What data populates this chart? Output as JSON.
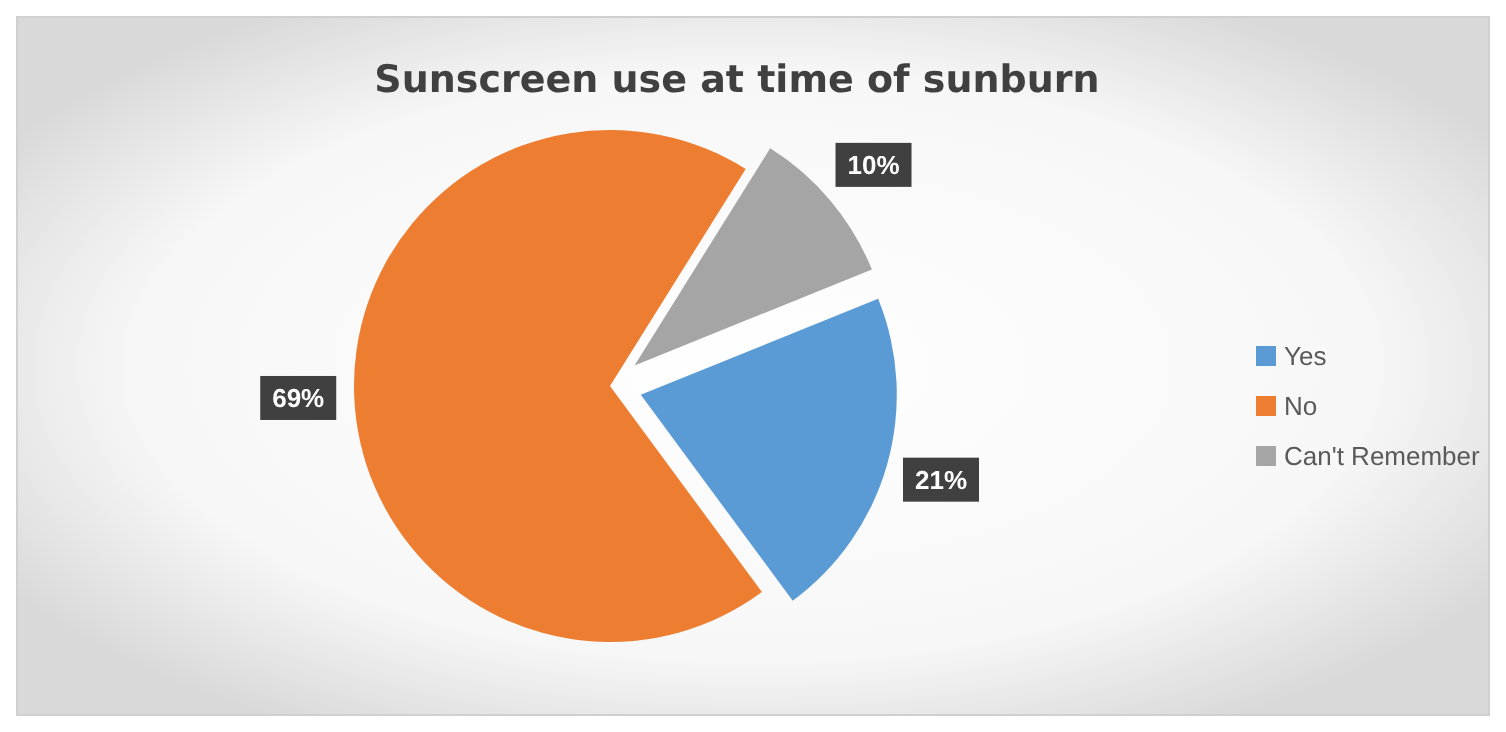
{
  "chart_data": {
    "type": "pie",
    "title": "Sunscreen use at time of sunburn",
    "categories": [
      "Yes",
      "No",
      "Can't Remember"
    ],
    "values": [
      21,
      69,
      10
    ],
    "colors": [
      "#5b9bd5",
      "#ed7d31",
      "#a5a5a5"
    ],
    "value_labels": [
      "21%",
      "69%",
      "10%"
    ],
    "legend": "right"
  }
}
